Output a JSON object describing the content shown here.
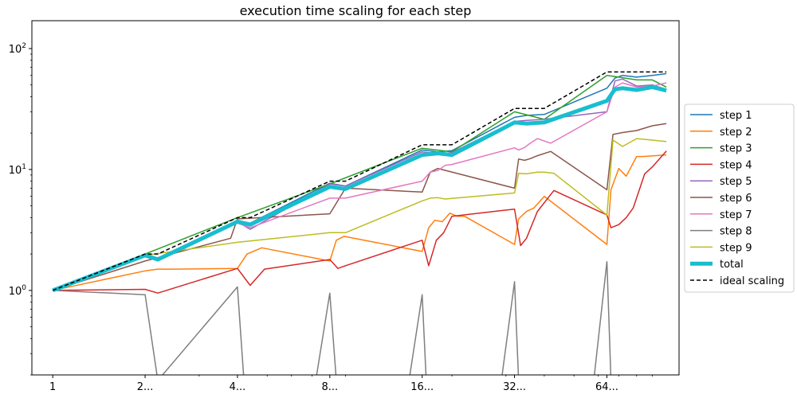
{
  "chart_data": {
    "type": "line",
    "title": "execution time scaling for each step",
    "xscale": "log",
    "yscale": "log",
    "xlim": [
      0.855,
      110
    ],
    "ylim": [
      0.2,
      170
    ],
    "x_ticks": [
      {
        "value": 1,
        "label": "1"
      },
      {
        "value": 2,
        "label": "2..."
      },
      {
        "value": 4,
        "label": "4..."
      },
      {
        "value": 8,
        "label": "8..."
      },
      {
        "value": 16,
        "label": "16..."
      },
      {
        "value": 32,
        "label": "32..."
      },
      {
        "value": 64,
        "label": "64..."
      }
    ],
    "y_ticks": [
      {
        "value": 1,
        "base": "10",
        "exp": "0"
      },
      {
        "value": 10,
        "base": "10",
        "exp": "1"
      },
      {
        "value": 100,
        "base": "10",
        "exp": "2"
      }
    ],
    "legend_position": "center-right",
    "series": [
      {
        "name": "step 1",
        "color": "#1f77b4",
        "width": 1.5,
        "dash": "",
        "x": [
          1,
          2,
          2.2,
          4,
          4.4,
          8,
          9,
          16,
          18,
          20,
          32,
          35,
          40,
          64,
          68,
          72,
          80,
          90,
          100
        ],
        "y": [
          1,
          2,
          1.85,
          3.8,
          3.6,
          7.7,
          7.3,
          14.5,
          14.0,
          14.3,
          27,
          28,
          28.5,
          47,
          57,
          60,
          58,
          60,
          62
        ]
      },
      {
        "name": "step 2",
        "color": "#ff7f0e",
        "width": 1.5,
        "dash": "",
        "x": [
          1,
          2,
          2.2,
          2.5,
          4,
          4.3,
          4.8,
          8,
          8.4,
          8.9,
          16,
          16.8,
          17.6,
          18.6,
          19.7,
          20.8,
          22,
          32,
          33,
          35,
          37,
          40,
          64,
          66,
          70,
          74,
          80,
          84,
          100
        ],
        "y": [
          1,
          1.45,
          1.5,
          1.5,
          1.52,
          2.0,
          2.25,
          1.75,
          2.6,
          2.8,
          2.1,
          3.3,
          3.8,
          3.7,
          4.35,
          4.1,
          4.1,
          2.4,
          3.9,
          4.5,
          4.8,
          6.0,
          2.4,
          6.8,
          10.2,
          8.8,
          12.8,
          12.8,
          13.2
        ]
      },
      {
        "name": "step 3",
        "color": "#2ca02c",
        "width": 1.5,
        "dash": "",
        "x": [
          1,
          2,
          4,
          8,
          16,
          20,
          32,
          40,
          64,
          70,
          80,
          90,
          100
        ],
        "y": [
          1,
          2,
          4,
          7.6,
          15,
          14,
          30,
          26,
          60,
          58,
          55,
          55,
          48
        ]
      },
      {
        "name": "step 4",
        "color": "#d62728",
        "width": 1.5,
        "dash": "",
        "x": [
          1,
          2,
          2.2,
          4,
          4.4,
          4.9,
          8,
          8.5,
          9,
          16,
          16.8,
          17.8,
          18.8,
          20,
          32,
          33.5,
          35,
          38,
          43,
          64,
          66,
          70,
          74,
          78,
          85,
          90,
          100
        ],
        "y": [
          1,
          1.02,
          0.95,
          1.52,
          1.1,
          1.5,
          1.8,
          1.52,
          1.6,
          2.6,
          1.6,
          2.6,
          3.0,
          4.1,
          4.7,
          2.35,
          2.7,
          4.5,
          6.7,
          4.2,
          3.3,
          3.5,
          4.0,
          4.8,
          9.2,
          10.5,
          14.2
        ]
      },
      {
        "name": "step 5",
        "color": "#9467bd",
        "width": 1.5,
        "dash": "",
        "x": [
          1,
          2,
          2.2,
          4,
          4.4,
          8,
          9,
          16,
          18,
          20,
          32,
          35,
          40,
          64,
          68,
          72,
          80,
          90,
          100
        ],
        "y": [
          1,
          1.95,
          1.8,
          3.7,
          3.2,
          7.6,
          7.3,
          14.0,
          13.5,
          13.8,
          25,
          25.5,
          26,
          30,
          54,
          56,
          49,
          50,
          46
        ]
      },
      {
        "name": "step 6",
        "color": "#8c564b",
        "width": 1.5,
        "dash": "",
        "x": [
          1,
          2,
          3.8,
          4,
          8,
          9,
          16,
          17,
          18,
          32,
          33,
          34.5,
          36,
          38,
          42,
          64,
          67,
          72,
          80,
          90,
          100
        ],
        "y": [
          1,
          1.75,
          2.7,
          3.9,
          4.3,
          7.0,
          6.5,
          9.5,
          10.2,
          7.0,
          12.2,
          11.9,
          12.3,
          13.0,
          14.1,
          6.8,
          19.5,
          20.2,
          21.0,
          23.0,
          24.0
        ]
      },
      {
        "name": "step 7",
        "color": "#e377c2",
        "width": 1.5,
        "dash": "",
        "x": [
          1,
          2,
          2.2,
          4,
          4.4,
          8,
          9,
          16,
          17,
          18,
          19,
          20,
          32,
          33,
          34.5,
          36,
          38,
          42,
          64,
          68,
          72,
          80,
          90,
          100
        ],
        "y": [
          1,
          1.95,
          1.75,
          3.6,
          3.3,
          5.8,
          5.8,
          8.0,
          9.5,
          9.8,
          10.8,
          11.0,
          15.1,
          14.5,
          15.2,
          16.5,
          18.0,
          16.5,
          30,
          48,
          52,
          48,
          49,
          52
        ]
      },
      {
        "name": "step 8",
        "color": "#7f7f7f",
        "width": 1.5,
        "dash": "",
        "x": [
          1,
          2,
          2.2,
          4,
          4.2,
          7.2,
          8,
          8.4,
          14.5,
          16,
          16.5,
          29,
          32,
          33,
          58,
          64,
          66
        ],
        "y": [
          1,
          0.92,
          0.18,
          1.07,
          0.18,
          0.18,
          0.95,
          0.18,
          0.18,
          0.92,
          0.18,
          0.18,
          1.18,
          0.18,
          0.18,
          1.73,
          0.18
        ]
      },
      {
        "name": "step 9",
        "color": "#bcbd22",
        "width": 1.5,
        "dash": "",
        "x": [
          1,
          2,
          4,
          8,
          9,
          16,
          17,
          18,
          19,
          32,
          33,
          35,
          38,
          40,
          43,
          64,
          67,
          72,
          80,
          90,
          100
        ],
        "y": [
          1,
          1.95,
          2.5,
          3.0,
          3.0,
          5.5,
          5.8,
          5.85,
          5.7,
          6.4,
          9.3,
          9.2,
          9.5,
          9.5,
          9.3,
          4.2,
          17.5,
          15.5,
          18.0,
          17.5,
          17.0
        ]
      },
      {
        "name": "total",
        "color": "#17becf",
        "width": 5,
        "dash": "",
        "x": [
          1,
          2,
          2.2,
          4,
          4.4,
          8,
          9,
          16,
          18,
          20,
          32,
          35,
          40,
          64,
          68,
          72,
          80,
          90,
          100
        ],
        "y": [
          1,
          1.95,
          1.8,
          3.7,
          3.5,
          7.2,
          6.9,
          13.2,
          13.6,
          13.2,
          24.5,
          24,
          24.5,
          37,
          46,
          47,
          45.5,
          48,
          45
        ]
      },
      {
        "name": "ideal scaling",
        "color": "#000000",
        "width": 1.5,
        "dash": "5,3",
        "x": [
          1,
          2,
          2.2,
          4,
          4.4,
          8,
          9,
          16,
          18,
          20,
          32,
          35,
          40,
          64,
          68,
          72,
          80,
          90,
          100
        ],
        "y": [
          1,
          2,
          2,
          4,
          4,
          8,
          8,
          16,
          16,
          16,
          32,
          32,
          32,
          64,
          64,
          64,
          64,
          64,
          64
        ]
      }
    ]
  }
}
